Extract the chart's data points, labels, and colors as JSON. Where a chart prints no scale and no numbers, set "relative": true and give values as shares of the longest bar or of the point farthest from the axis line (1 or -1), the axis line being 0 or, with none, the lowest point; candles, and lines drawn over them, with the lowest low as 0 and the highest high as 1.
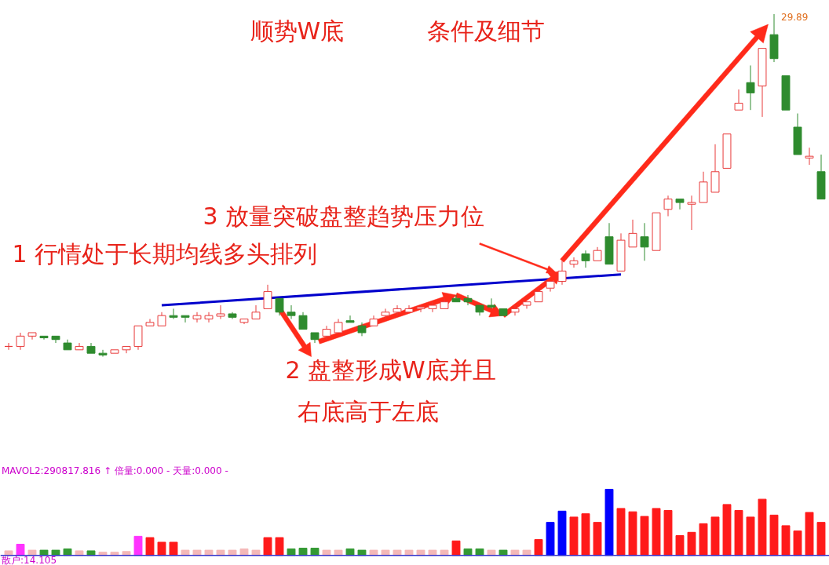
{
  "chart_data": [
    {
      "type": "candlestick",
      "relative": true,
      "title": "顺势W底",
      "subtitle": "条件及细节",
      "categories": [
        null,
        null,
        null,
        null,
        null,
        null,
        null,
        null,
        null,
        null,
        null,
        null,
        null,
        null,
        null,
        null,
        null,
        null,
        null,
        null,
        null,
        null,
        null,
        null,
        null,
        null,
        null,
        null,
        null,
        null,
        null,
        null,
        null,
        null,
        null,
        null,
        null,
        null,
        null,
        null,
        null,
        null,
        null,
        null,
        null,
        null,
        null,
        null,
        null,
        null,
        null,
        null,
        null,
        null,
        null,
        null,
        null,
        null,
        null,
        null,
        null,
        null,
        null,
        null,
        null,
        null,
        null,
        null,
        null,
        null
      ],
      "ohlc": [
        [
          0.03,
          0.04,
          0.02,
          0.03
        ],
        [
          0.03,
          0.07,
          0.02,
          0.06
        ],
        [
          0.06,
          0.07,
          0.05,
          0.07
        ],
        [
          0.06,
          0.06,
          0.05,
          0.055
        ],
        [
          0.06,
          0.06,
          0.04,
          0.05
        ],
        [
          0.04,
          0.05,
          0.02,
          0.02
        ],
        [
          0.02,
          0.04,
          0.02,
          0.03
        ],
        [
          0.03,
          0.04,
          0.01,
          0.01
        ],
        [
          0.01,
          0.02,
          0,
          0.005
        ],
        [
          0.01,
          0.02,
          0.01,
          0.02
        ],
        [
          0.02,
          0.03,
          0.01,
          0.03
        ],
        [
          0.03,
          0.09,
          0.02,
          0.09
        ],
        [
          0.09,
          0.11,
          0.09,
          0.1
        ],
        [
          0.09,
          0.13,
          0.09,
          0.12
        ],
        [
          0.12,
          0.14,
          0.11,
          0.115
        ],
        [
          0.12,
          0.12,
          0.1,
          0.115
        ],
        [
          0.11,
          0.13,
          0.1,
          0.12
        ],
        [
          0.11,
          0.13,
          0.1,
          0.12
        ],
        [
          0.118,
          0.15,
          0.11,
          0.125
        ],
        [
          0.125,
          0.13,
          0.11,
          0.115
        ],
        [
          0.1,
          0.11,
          0.095,
          0.11
        ],
        [
          0.11,
          0.15,
          0.11,
          0.13
        ],
        [
          0.14,
          0.21,
          0.14,
          0.19
        ],
        [
          0.17,
          0.17,
          0.12,
          0.13
        ],
        [
          0.13,
          0.15,
          0.11,
          0.12
        ],
        [
          0.12,
          0.13,
          0.08,
          0.08
        ],
        [
          0.07,
          0.07,
          0.04,
          0.05
        ],
        [
          0.06,
          0.09,
          0.05,
          0.08
        ],
        [
          0.07,
          0.11,
          0.07,
          0.1
        ],
        [
          0.105,
          0.12,
          0.1,
          0.1
        ],
        [
          0.09,
          0.1,
          0.06,
          0.07
        ],
        [
          0.09,
          0.12,
          0.09,
          0.11
        ],
        [
          0.12,
          0.14,
          0.11,
          0.13
        ],
        [
          0.13,
          0.15,
          0.12,
          0.14
        ],
        [
          0.13,
          0.15,
          0.13,
          0.14
        ],
        [
          0.14,
          0.15,
          0.13,
          0.145
        ],
        [
          0.14,
          0.16,
          0.13,
          0.15
        ],
        [
          0.14,
          0.17,
          0.14,
          0.16
        ],
        [
          0.17,
          0.18,
          0.16,
          0.16
        ],
        [
          0.17,
          0.18,
          0.15,
          0.16
        ],
        [
          0.15,
          0.15,
          0.12,
          0.13
        ],
        [
          0.15,
          0.17,
          0.14,
          0.145
        ],
        [
          0.14,
          0.14,
          0.12,
          0.12
        ],
        [
          0.13,
          0.15,
          0.12,
          0.14
        ],
        [
          0.15,
          0.16,
          0.14,
          0.16
        ],
        [
          0.16,
          0.2,
          0.16,
          0.19
        ],
        [
          0.2,
          0.22,
          0.19,
          0.22
        ],
        [
          0.22,
          0.28,
          0.21,
          0.25
        ],
        [
          0.27,
          0.29,
          0.26,
          0.28
        ],
        [
          0.3,
          0.31,
          0.26,
          0.28
        ],
        [
          0.28,
          0.32,
          0.28,
          0.31
        ],
        [
          0.35,
          0.39,
          0.27,
          0.27
        ],
        [
          0.25,
          0.36,
          0.25,
          0.34
        ],
        [
          0.32,
          0.4,
          0.32,
          0.36
        ],
        [
          0.35,
          0.39,
          0.28,
          0.32
        ],
        [
          0.31,
          0.42,
          0.31,
          0.42
        ],
        [
          0.43,
          0.47,
          0.41,
          0.46
        ],
        [
          0.46,
          0.46,
          0.43,
          0.45
        ],
        [
          0.445,
          0.47,
          0.37,
          0.45
        ],
        [
          0.45,
          0.54,
          0.45,
          0.51
        ],
        [
          0.48,
          0.62,
          0.48,
          0.54
        ],
        [
          0.55,
          0.65,
          0.55,
          0.65
        ],
        [
          0.72,
          0.78,
          0.72,
          0.74
        ],
        [
          0.8,
          0.85,
          0.72,
          0.77
        ],
        [
          0.79,
          0.9,
          0.7,
          0.9
        ],
        [
          0.94,
          1,
          0.86,
          0.87
        ],
        [
          0.82,
          0.82,
          0.72,
          0.72
        ],
        [
          0.67,
          0.71,
          0.59,
          0.59
        ],
        [
          0.58,
          0.61,
          0.56,
          0.585
        ],
        [
          0.54,
          0.59,
          0.46,
          0.46
        ]
      ],
      "colors": [
        "#e83a3a",
        "#e83a3a",
        "#e83a3a",
        "#2e8b2e",
        "#2e8b2e",
        "#2e8b2e",
        "#e83a3a",
        "#2e8b2e",
        "#2e8b2e",
        "#e83a3a",
        "#e83a3a",
        "#e83a3a",
        "#e83a3a",
        "#e83a3a",
        "#2e8b2e",
        "#2e8b2e",
        "#e83a3a",
        "#e83a3a",
        "#e83a3a",
        "#2e8b2e",
        "#e83a3a",
        "#e83a3a",
        "#e83a3a",
        "#2e8b2e",
        "#2e8b2e",
        "#2e8b2e",
        "#2e8b2e",
        "#e83a3a",
        "#e83a3a",
        "#2e8b2e",
        "#2e8b2e",
        "#e83a3a",
        "#e83a3a",
        "#e83a3a",
        "#e83a3a",
        "#e83a3a",
        "#e83a3a",
        "#e83a3a",
        "#2e8b2e",
        "#2e8b2e",
        "#2e8b2e",
        "#2e8b2e",
        "#2e8b2e",
        "#e83a3a",
        "#e83a3a",
        "#e83a3a",
        "#e83a3a",
        "#e83a3a",
        "#e83a3a",
        "#2e8b2e",
        "#e83a3a",
        "#2e8b2e",
        "#e83a3a",
        "#e83a3a",
        "#2e8b2e",
        "#e83a3a",
        "#e83a3a",
        "#2e8b2e",
        "#e83a3a",
        "#e83a3a",
        "#e83a3a",
        "#e83a3a",
        "#e83a3a",
        "#2e8b2e",
        "#e83a3a",
        "#2e8b2e",
        "#2e8b2e",
        "#2e8b2e",
        "#e83a3a",
        "#2e8b2e"
      ],
      "series": [
        {
          "type": "line",
          "color": "#0000cc",
          "values": [
            null,
            null,
            null,
            null,
            null,
            null,
            null,
            null,
            null,
            null,
            null,
            null,
            null,
            0.15,
            null,
            null,
            null,
            null,
            null,
            null,
            null,
            null,
            null,
            null,
            null,
            null,
            null,
            null,
            null,
            null,
            null,
            null,
            null,
            null,
            null,
            null,
            null,
            null,
            null,
            null,
            null,
            null,
            null,
            null,
            null,
            null,
            null,
            null,
            null,
            null,
            null,
            null,
            0.24,
            null,
            null,
            null,
            null,
            null,
            null,
            null,
            null,
            null,
            null,
            null,
            null,
            null,
            null,
            null,
            null,
            null
          ]
        }
      ],
      "annotations": [
        "1 行情处于长期均线多头排列",
        "3 放量突破盘整趋势压力位",
        "2 盘整形成W底并且",
        "右底高于左底",
        "29.89"
      ]
    },
    {
      "type": "bar",
      "relative": true,
      "categories": [
        null,
        null,
        null,
        null,
        null,
        null,
        null,
        null,
        null,
        null,
        null,
        null,
        null,
        null,
        null,
        null,
        null,
        null,
        null,
        null,
        null,
        null,
        null,
        null,
        null,
        null,
        null,
        null,
        null,
        null,
        null,
        null,
        null,
        null,
        null,
        null,
        null,
        null,
        null,
        null,
        null,
        null,
        null,
        null,
        null,
        null,
        null,
        null,
        null,
        null,
        null,
        null,
        null,
        null,
        null,
        null,
        null,
        null,
        null,
        null,
        null,
        null,
        null,
        null,
        null,
        null,
        null,
        null,
        null,
        null
      ],
      "values": [
        0.07,
        0.17,
        0.08,
        0.08,
        0.08,
        0.1,
        0.07,
        0.07,
        0.05,
        0.05,
        0.06,
        0.29,
        0.27,
        0.2,
        0.2,
        0.08,
        0.08,
        0.08,
        0.08,
        0.08,
        0.1,
        0.08,
        0.27,
        0.27,
        0.1,
        0.11,
        0.11,
        0.08,
        0.08,
        0.1,
        0.08,
        0.08,
        0.08,
        0.08,
        0.08,
        0.08,
        0.08,
        0.08,
        0.22,
        0.1,
        0.1,
        0.08,
        0.08,
        0.08,
        0.08,
        0.24,
        0.5,
        0.67,
        0.58,
        0.63,
        0.5,
        1,
        0.71,
        0.66,
        0.59,
        0.71,
        0.68,
        0.3,
        0.35,
        0.48,
        0.58,
        0.77,
        0.68,
        0.58,
        0.85,
        0.61,
        0.45,
        0.37,
        0.65,
        0.5
      ],
      "colors": [
        "#f4b8b8",
        "#ff33ff",
        "#f4b8b8",
        "#339933",
        "#339933",
        "#339933",
        "#f4b8b8",
        "#339933",
        "#f4b8b8",
        "#f4b8b8",
        "#f4b8b8",
        "#ff33ff",
        "#ff1a1a",
        "#ff1a1a",
        "#ff1a1a",
        "#f4b8b8",
        "#f4b8b8",
        "#f4b8b8",
        "#f4b8b8",
        "#f4b8b8",
        "#f4b8b8",
        "#f4b8b8",
        "#ff1a1a",
        "#ff1a1a",
        "#339933",
        "#339933",
        "#339933",
        "#f4b8b8",
        "#f4b8b8",
        "#339933",
        "#339933",
        "#f4b8b8",
        "#f4b8b8",
        "#f4b8b8",
        "#f4b8b8",
        "#f4b8b8",
        "#f4b8b8",
        "#f4b8b8",
        "#ff1a1a",
        "#339933",
        "#339933",
        "#f4b8b8",
        "#339933",
        "#f4b8b8",
        "#f4b8b8",
        "#ff1a1a",
        "#0000ff",
        "#0000ff",
        "#ff1a1a",
        "#ff1a1a",
        "#ff1a1a",
        "#0000ff",
        "#ff1a1a",
        "#ff1a1a",
        "#ff1a1a",
        "#ff1a1a",
        "#ff1a1a",
        "#ff1a1a",
        "#ff1a1a",
        "#ff1a1a",
        "#ff1a1a",
        "#ff1a1a",
        "#ff1a1a",
        "#ff1a1a",
        "#ff1a1a",
        "#ff1a1a",
        "#ff1a1a",
        "#ff1a1a",
        "#ff1a1a",
        "#ff1a1a"
      ],
      "annotations": [
        "MAVOL2:290817.816 ↑ 倍量:0.000 - 天量:0.000 -",
        "散户:14.105"
      ]
    }
  ]
}
